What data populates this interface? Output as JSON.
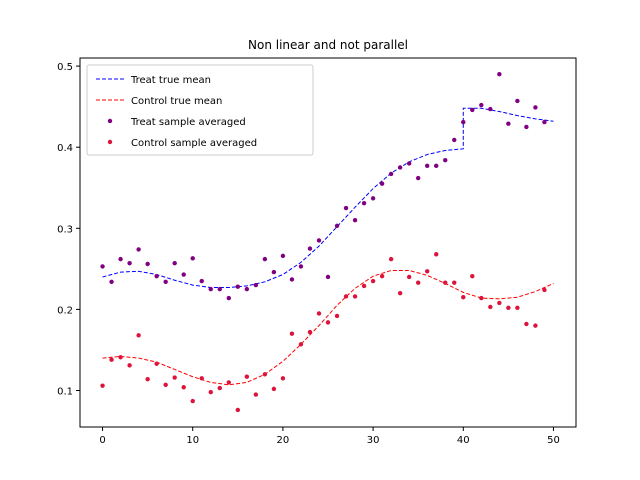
{
  "chart_data": {
    "type": "scatter",
    "title": "Non linear and not parallel",
    "xlabel": "",
    "ylabel": "",
    "xlim": [
      -2.5,
      52.5
    ],
    "ylim": [
      0.055,
      0.51
    ],
    "xticks": [
      0,
      10,
      20,
      30,
      40,
      50
    ],
    "yticks": [
      0.1,
      0.2,
      0.3,
      0.4,
      0.5
    ],
    "xtick_labels": [
      "0",
      "10",
      "20",
      "30",
      "40",
      "50"
    ],
    "ytick_labels": [
      "0.1",
      "0.2",
      "0.3",
      "0.4",
      "0.5"
    ],
    "grid": false,
    "legend_position": "top-left",
    "series": [
      {
        "name": "Treat true mean",
        "kind": "line",
        "style": "dashed",
        "color": "#0000ff",
        "x": [
          0,
          2,
          4,
          6,
          8,
          10,
          12,
          14,
          16,
          18,
          20,
          22,
          24,
          26,
          28,
          30,
          32,
          34,
          36,
          38,
          40,
          40,
          42,
          44,
          46,
          48,
          50
        ],
        "y": [
          0.24,
          0.246,
          0.247,
          0.243,
          0.236,
          0.23,
          0.227,
          0.227,
          0.229,
          0.234,
          0.243,
          0.258,
          0.278,
          0.302,
          0.326,
          0.349,
          0.368,
          0.382,
          0.391,
          0.396,
          0.398,
          0.448,
          0.448,
          0.444,
          0.439,
          0.435,
          0.432
        ]
      },
      {
        "name": "Control true mean",
        "kind": "line",
        "style": "dashed",
        "color": "#ff0000",
        "x": [
          0,
          2,
          4,
          6,
          8,
          10,
          12,
          14,
          16,
          18,
          20,
          22,
          24,
          26,
          28,
          30,
          32,
          34,
          36,
          38,
          40,
          42,
          44,
          46,
          48,
          50
        ],
        "y": [
          0.14,
          0.142,
          0.14,
          0.135,
          0.126,
          0.117,
          0.11,
          0.107,
          0.11,
          0.12,
          0.136,
          0.157,
          0.18,
          0.205,
          0.226,
          0.241,
          0.248,
          0.248,
          0.242,
          0.232,
          0.221,
          0.214,
          0.213,
          0.215,
          0.222,
          0.232
        ]
      },
      {
        "name": "Treat sample averaged",
        "kind": "points",
        "color": "#800080",
        "x": [
          0,
          1,
          2,
          3,
          4,
          5,
          6,
          7,
          8,
          9,
          10,
          11,
          12,
          13,
          14,
          15,
          16,
          17,
          18,
          19,
          20,
          21,
          22,
          23,
          24,
          25,
          26,
          27,
          28,
          29,
          30,
          31,
          32,
          33,
          34,
          35,
          36,
          37,
          38,
          39,
          40,
          41,
          42,
          43,
          44,
          45,
          46,
          47,
          48,
          49
        ],
        "y": [
          0.253,
          0.234,
          0.262,
          0.257,
          0.274,
          0.256,
          0.241,
          0.234,
          0.257,
          0.243,
          0.263,
          0.235,
          0.225,
          0.225,
          0.214,
          0.228,
          0.225,
          0.23,
          0.262,
          0.246,
          0.266,
          0.237,
          0.253,
          0.275,
          0.285,
          0.24,
          0.303,
          0.325,
          0.31,
          0.331,
          0.337,
          0.355,
          0.367,
          0.375,
          0.38,
          0.362,
          0.377,
          0.377,
          0.384,
          0.409,
          0.431,
          0.446,
          0.452,
          0.447,
          0.49,
          0.429,
          0.457,
          0.425,
          0.449,
          0.431
        ]
      },
      {
        "name": "Control sample averaged",
        "kind": "points",
        "color": "#dc143c",
        "x": [
          0,
          1,
          2,
          3,
          4,
          5,
          6,
          7,
          8,
          9,
          10,
          11,
          12,
          13,
          14,
          15,
          16,
          17,
          18,
          19,
          20,
          21,
          22,
          23,
          24,
          25,
          26,
          27,
          28,
          29,
          30,
          31,
          32,
          33,
          34,
          35,
          36,
          37,
          38,
          39,
          40,
          41,
          42,
          43,
          44,
          45,
          46,
          47,
          48,
          49
        ],
        "y": [
          0.106,
          0.138,
          0.141,
          0.131,
          0.168,
          0.114,
          0.133,
          0.107,
          0.116,
          0.104,
          0.087,
          0.115,
          0.098,
          0.103,
          0.11,
          0.076,
          0.117,
          0.095,
          0.12,
          0.102,
          0.115,
          0.17,
          0.157,
          0.172,
          0.195,
          0.184,
          0.192,
          0.216,
          0.216,
          0.229,
          0.235,
          0.241,
          0.262,
          0.22,
          0.24,
          0.233,
          0.247,
          0.268,
          0.233,
          0.233,
          0.215,
          0.241,
          0.214,
          0.203,
          0.208,
          0.202,
          0.202,
          0.182,
          0.18,
          0.224
        ]
      }
    ]
  }
}
